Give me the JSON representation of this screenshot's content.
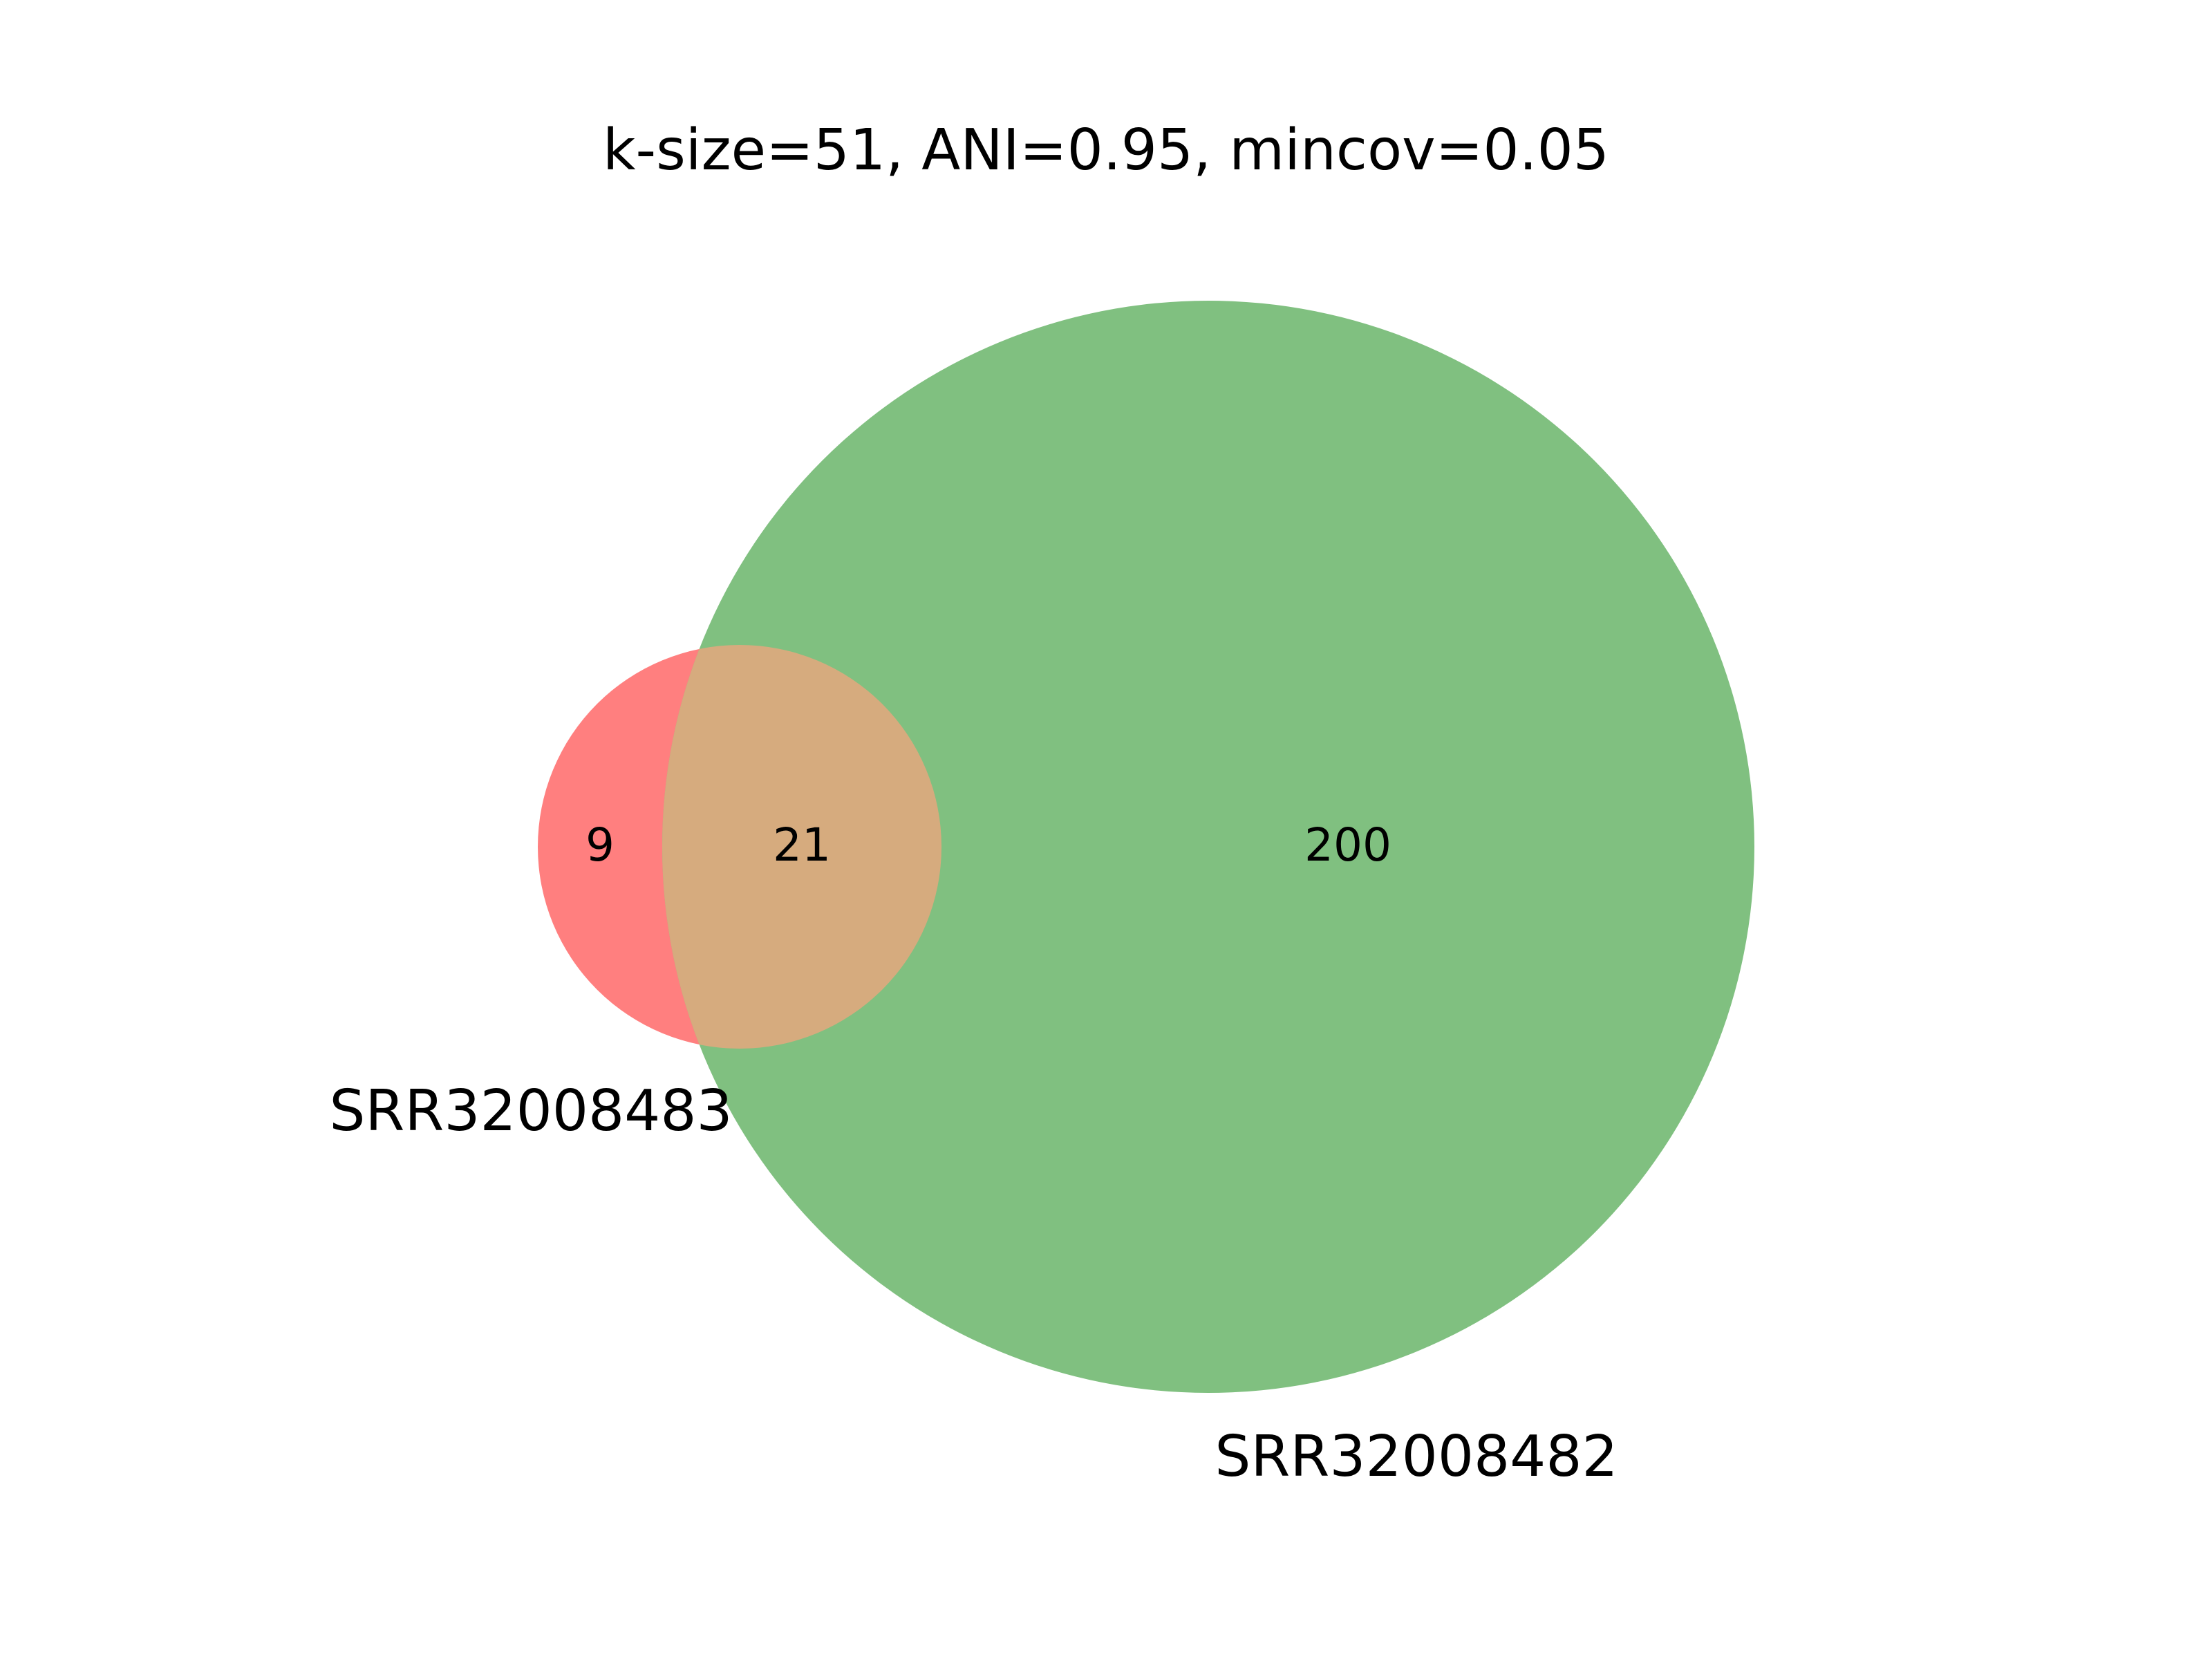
{
  "title": "k-size=51, ANI=0.95, mincov=0.05",
  "sets": [
    {
      "label": "SRR32008483",
      "color": "#ff7f7f"
    },
    {
      "label": "SRR32008482",
      "color": "#80c080"
    }
  ],
  "regions": {
    "only_first": "9",
    "overlap": "21",
    "only_second": "200"
  },
  "colors": {
    "first_set": "#ff7f7f",
    "second_set": "#80c080",
    "overlap": "#d6ab7e",
    "background": "#ffffff"
  }
}
